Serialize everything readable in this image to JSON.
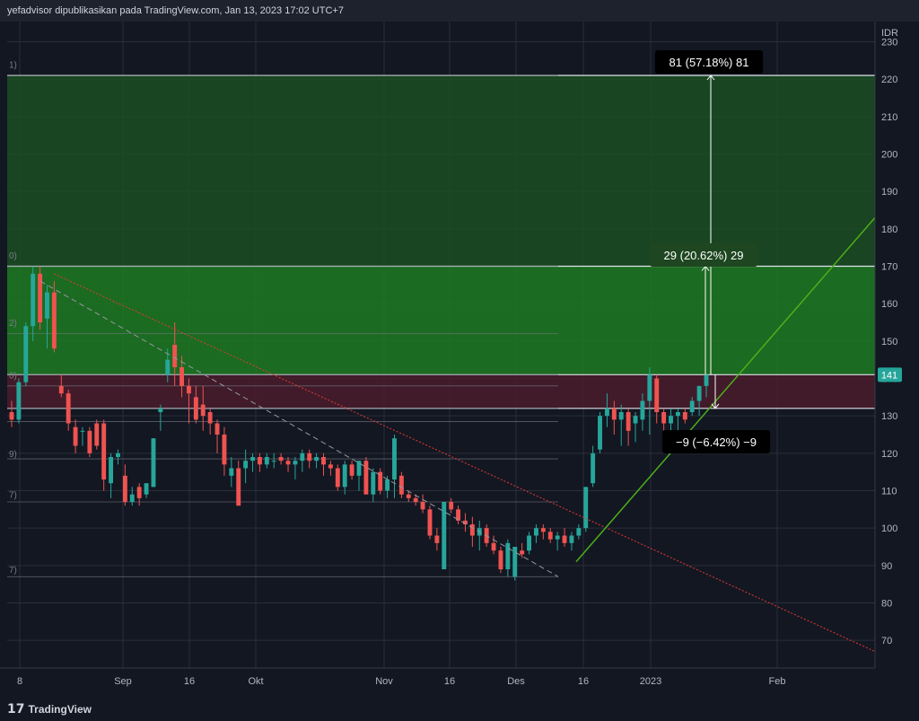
{
  "header": {
    "attribution": "yefadvisor dipublikasikan pada TradingView.com, Jan 13, 2023 17:02 UTC+7"
  },
  "footer": {
    "brand": "TradingView",
    "logo_icon": "tradingview-logo-icon"
  },
  "colors": {
    "bg": "#131722",
    "grid": "#2a2e39",
    "up": "#26a69a",
    "down": "#ef5350",
    "zone_green": "#1f7a22",
    "zone_dark_green": "#1b4d22",
    "zone_red": "#4a1c2b",
    "trend_green": "#4caf1a",
    "trend_red": "#e53935",
    "label_bg": "#000000",
    "label_green_bg": "#1e4620",
    "price_badge": "#26a69a"
  },
  "chart_data": {
    "type": "candlestick",
    "currency": "IDR",
    "ylim": [
      65,
      233
    ],
    "y_ticks": [
      70,
      80,
      90,
      100,
      110,
      120,
      130,
      140,
      150,
      160,
      170,
      180,
      190,
      200,
      210,
      220,
      230
    ],
    "x_ticks": [
      "8",
      "Sep",
      "16",
      "Okt",
      "Nov",
      "16",
      "Des",
      "16",
      "2023",
      "Feb"
    ],
    "last_price_label": "141",
    "grid": true,
    "fib_left_labels": [
      "1)",
      "0)",
      "2)",
      "0)",
      "9)",
      "7)",
      "7)"
    ],
    "fib_levels": [
      221,
      170,
      152,
      141,
      138,
      132,
      128.5,
      118.5,
      107,
      87
    ],
    "zones": [
      {
        "kind": "target-far",
        "from": 170,
        "to": 221
      },
      {
        "kind": "target-near",
        "from": 141,
        "to": 170
      },
      {
        "kind": "stop",
        "from": 132,
        "to": 141
      }
    ],
    "measures": [
      {
        "label": "81 (57.18%) 81",
        "from": 141,
        "to": 221
      },
      {
        "label": "29 (20.62%) 29",
        "from": 141,
        "to": 170
      },
      {
        "label": "−9 (−6.42%) −9",
        "from": 141,
        "to": 132
      }
    ],
    "candles": [
      [
        131,
        134,
        127,
        129
      ],
      [
        129,
        140,
        128,
        139
      ],
      [
        139,
        155,
        138,
        154
      ],
      [
        154,
        170,
        150,
        168
      ],
      [
        168,
        170,
        153,
        155
      ],
      [
        156,
        165,
        148,
        163
      ],
      [
        163,
        166,
        147,
        148
      ],
      [
        138,
        141,
        135,
        136
      ],
      [
        136,
        137,
        126,
        128
      ],
      [
        127,
        129,
        120,
        122
      ],
      [
        126,
        127,
        122,
        126
      ],
      [
        126,
        127,
        119,
        120
      ],
      [
        128,
        129,
        121,
        122
      ],
      [
        128,
        129,
        110,
        113
      ],
      [
        112,
        120,
        108,
        119
      ],
      [
        119,
        121,
        117,
        120
      ],
      [
        114,
        117,
        106,
        107
      ],
      [
        107,
        111,
        106,
        109
      ],
      [
        111,
        112,
        106,
        108
      ],
      [
        109,
        112,
        108,
        112
      ],
      [
        111,
        124,
        111,
        124
      ],
      [
        131,
        133,
        126,
        132
      ],
      [
        141,
        148,
        139,
        145
      ],
      [
        149,
        155,
        138,
        143
      ],
      [
        143,
        146,
        135,
        138
      ],
      [
        138,
        140,
        128,
        136
      ],
      [
        135,
        138,
        128,
        129
      ],
      [
        133,
        138,
        126,
        130
      ],
      [
        131,
        132,
        125,
        128
      ],
      [
        128,
        129,
        120,
        125
      ],
      [
        125,
        127,
        114,
        117
      ],
      [
        114,
        119,
        111,
        116
      ],
      [
        116,
        118,
        106,
        106
      ],
      [
        116,
        121,
        112,
        118
      ],
      [
        118,
        120,
        115,
        119
      ],
      [
        119,
        120,
        115,
        117
      ],
      [
        117,
        120,
        116,
        119
      ],
      [
        118,
        120,
        116,
        118
      ],
      [
        119,
        120,
        117,
        118
      ],
      [
        118,
        119,
        115,
        117
      ],
      [
        117,
        119,
        113,
        118
      ],
      [
        118,
        121,
        115,
        120
      ],
      [
        120,
        121,
        116,
        118
      ],
      [
        118,
        120,
        116,
        119
      ],
      [
        119,
        120,
        114,
        117
      ],
      [
        117,
        118,
        114,
        116
      ],
      [
        116,
        117,
        110,
        111
      ],
      [
        111,
        118,
        109,
        117
      ],
      [
        117,
        118,
        113,
        114
      ],
      [
        114,
        118,
        110,
        118
      ],
      [
        118,
        119,
        109,
        109
      ],
      [
        109,
        116,
        107,
        115
      ],
      [
        115,
        116,
        109,
        110
      ],
      [
        110,
        114,
        108,
        113
      ],
      [
        113,
        125,
        108,
        124
      ],
      [
        114,
        115,
        108,
        109
      ],
      [
        109,
        110,
        107,
        108
      ],
      [
        108,
        109,
        106,
        107
      ],
      [
        107,
        109,
        104,
        105
      ],
      [
        105,
        106,
        97,
        98
      ],
      [
        98,
        100,
        94,
        96
      ],
      [
        89,
        107,
        89,
        107
      ],
      [
        107,
        108,
        104,
        105
      ],
      [
        105,
        106,
        101,
        102
      ],
      [
        102,
        104,
        99,
        101
      ],
      [
        101,
        103,
        95,
        98
      ],
      [
        98,
        102,
        94,
        100
      ],
      [
        100,
        101,
        95,
        96
      ],
      [
        96,
        98,
        93,
        94
      ],
      [
        94,
        95,
        88,
        89
      ],
      [
        89,
        97,
        87,
        96
      ],
      [
        87,
        95,
        86,
        95
      ],
      [
        94,
        96,
        92,
        93
      ],
      [
        94,
        99,
        93,
        98
      ],
      [
        98,
        101,
        96,
        100
      ],
      [
        100,
        101,
        97,
        99
      ],
      [
        99,
        100,
        96,
        97
      ],
      [
        97,
        99,
        94,
        98
      ],
      [
        98,
        100,
        95,
        96
      ],
      [
        96,
        99,
        94,
        98
      ],
      [
        98,
        101,
        97,
        100
      ],
      [
        100,
        111,
        99,
        111
      ],
      [
        112,
        122,
        111,
        120
      ],
      [
        121,
        131,
        120,
        130
      ],
      [
        130,
        136,
        127,
        132
      ],
      [
        132,
        134,
        125,
        129
      ],
      [
        129,
        133,
        122,
        131
      ],
      [
        131,
        132,
        122,
        126
      ],
      [
        128,
        131,
        123,
        130
      ],
      [
        129,
        136,
        126,
        134
      ],
      [
        134,
        143,
        125,
        141
      ],
      [
        140,
        141,
        128,
        131
      ],
      [
        131,
        132,
        126,
        128
      ],
      [
        128,
        132,
        126,
        130
      ],
      [
        130,
        132,
        126,
        131
      ],
      [
        131,
        132,
        128,
        129
      ],
      [
        131,
        135,
        130,
        134
      ],
      [
        134,
        138,
        130,
        138
      ],
      [
        138,
        141,
        135,
        141
      ]
    ]
  }
}
